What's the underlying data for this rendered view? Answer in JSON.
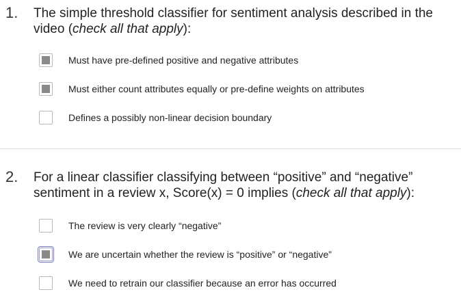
{
  "questions": [
    {
      "number": "1.",
      "text_before": "The simple threshold classifier for sentiment analysis described in the video (",
      "text_emph": "check all that apply",
      "text_after": "):",
      "options": [
        {
          "label": "Must have pre-defined positive and negative attributes",
          "checked": true
        },
        {
          "label": "Must either count attributes equally or pre-define weights on attributes",
          "checked": true
        },
        {
          "label": "Defines a possibly non-linear decision boundary",
          "checked": false
        }
      ]
    },
    {
      "number": "2.",
      "text_before": "For a linear classifier classifying between “positive” and “negative” sentiment in a review x, Score(x) = 0 implies (",
      "text_emph": "check all that apply",
      "text_after": "):",
      "options": [
        {
          "label": "The review is very clearly “negative”",
          "checked": false
        },
        {
          "label": "We are uncertain whether the review is “positive” or “negative”",
          "checked": true,
          "focused": true
        },
        {
          "label": "We need to retrain our classifier because an error has occurred",
          "checked": false
        }
      ]
    }
  ],
  "colors": {
    "checkbox_border": "#b9b9b9",
    "checkbox_fill": "#8a8a8a",
    "focus_ring": "#7a7acb",
    "divider": "#dddddd",
    "text": "#222222"
  }
}
